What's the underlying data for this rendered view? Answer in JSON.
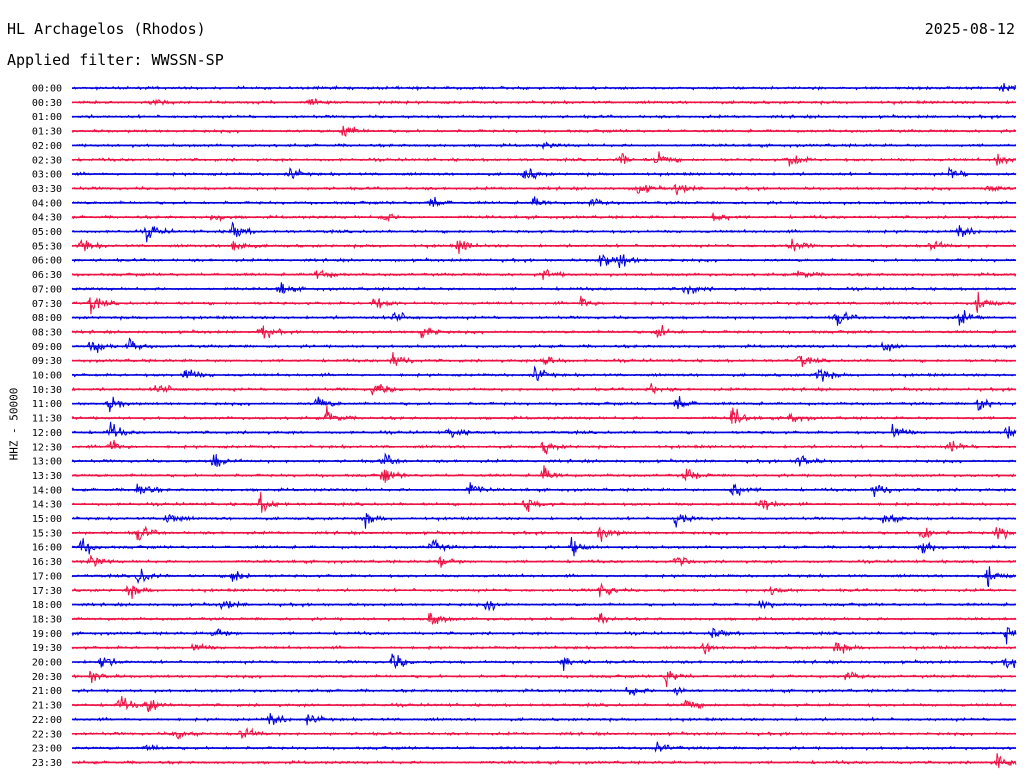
{
  "header": {
    "station": "HL Archagelos (Rhodos)",
    "date": "2025-08-12",
    "filter": "Applied filter: WWSSN-SP"
  },
  "chart_data": {
    "type": "line",
    "title": "HL Archagelos (Rhodos)",
    "ylabel": "HHZ - 50000",
    "colors": [
      "#0000dd",
      "#ee1144"
    ],
    "x_span": "30 minutes per trace",
    "traces": [
      {
        "label": "00:00",
        "color": "#0000dd",
        "events": [
          [
            0.985,
            1.0
          ]
        ]
      },
      {
        "label": "00:30",
        "color": "#ee1144",
        "events": [
          [
            0.086,
            0.45
          ],
          [
            0.25,
            0.6
          ]
        ]
      },
      {
        "label": "01:00",
        "color": "#0000dd",
        "events": []
      },
      {
        "label": "01:30",
        "color": "#ee1144",
        "events": [
          [
            0.287,
            0.9
          ]
        ]
      },
      {
        "label": "02:00",
        "color": "#0000dd",
        "events": [
          [
            0.5,
            0.3
          ]
        ]
      },
      {
        "label": "02:30",
        "color": "#ee1144",
        "events": [
          [
            0.58,
            0.7
          ],
          [
            0.62,
            0.9
          ],
          [
            0.76,
            0.9
          ],
          [
            0.98,
            0.7
          ]
        ]
      },
      {
        "label": "03:00",
        "color": "#0000dd",
        "events": [
          [
            0.23,
            0.7
          ],
          [
            0.48,
            0.8
          ],
          [
            0.93,
            0.8
          ]
        ]
      },
      {
        "label": "03:30",
        "color": "#ee1144",
        "events": [
          [
            0.6,
            0.7
          ],
          [
            0.64,
            0.8
          ],
          [
            0.97,
            0.6
          ]
        ]
      },
      {
        "label": "04:00",
        "color": "#0000dd",
        "events": [
          [
            0.38,
            0.8
          ],
          [
            0.49,
            0.6
          ],
          [
            0.55,
            0.5
          ]
        ]
      },
      {
        "label": "04:30",
        "color": "#ee1144",
        "events": [
          [
            0.15,
            0.6
          ],
          [
            0.33,
            0.6
          ],
          [
            0.68,
            0.7
          ]
        ]
      },
      {
        "label": "05:00",
        "color": "#0000dd",
        "events": [
          [
            0.08,
            1.0
          ],
          [
            0.17,
            1.0
          ],
          [
            0.94,
            1.0
          ]
        ]
      },
      {
        "label": "05:30",
        "color": "#ee1144",
        "events": [
          [
            0.01,
            0.8
          ],
          [
            0.17,
            1.0
          ],
          [
            0.41,
            0.8
          ],
          [
            0.76,
            0.9
          ],
          [
            0.91,
            0.8
          ]
        ]
      },
      {
        "label": "06:00",
        "color": "#0000dd",
        "events": [
          [
            0.56,
            1.0
          ],
          [
            0.58,
            0.9
          ]
        ]
      },
      {
        "label": "06:30",
        "color": "#ee1144",
        "events": [
          [
            0.26,
            0.8
          ],
          [
            0.5,
            0.7
          ],
          [
            0.77,
            0.6
          ]
        ]
      },
      {
        "label": "07:00",
        "color": "#0000dd",
        "events": [
          [
            0.22,
            0.8
          ],
          [
            0.65,
            0.9
          ]
        ]
      },
      {
        "label": "07:30",
        "color": "#ee1144",
        "events": [
          [
            0.02,
            1.0
          ],
          [
            0.32,
            0.8
          ],
          [
            0.54,
            0.8
          ],
          [
            0.96,
            1.0
          ]
        ]
      },
      {
        "label": "08:00",
        "color": "#0000dd",
        "events": [
          [
            0.34,
            0.9
          ],
          [
            0.81,
            1.0
          ],
          [
            0.94,
            1.0
          ]
        ]
      },
      {
        "label": "08:30",
        "color": "#ee1144",
        "events": [
          [
            0.2,
            1.0
          ],
          [
            0.37,
            0.9
          ],
          [
            0.62,
            1.0
          ]
        ]
      },
      {
        "label": "09:00",
        "color": "#0000dd",
        "events": [
          [
            0.02,
            1.0
          ],
          [
            0.06,
            0.8
          ],
          [
            0.86,
            0.9
          ]
        ]
      },
      {
        "label": "09:30",
        "color": "#ee1144",
        "events": [
          [
            0.34,
            1.0
          ],
          [
            0.5,
            0.9
          ],
          [
            0.77,
            0.8
          ]
        ]
      },
      {
        "label": "10:00",
        "color": "#0000dd",
        "events": [
          [
            0.12,
            1.0
          ],
          [
            0.49,
            0.9
          ],
          [
            0.79,
            1.0
          ]
        ]
      },
      {
        "label": "10:30",
        "color": "#ee1144",
        "events": [
          [
            0.09,
            0.9
          ],
          [
            0.32,
            1.0
          ],
          [
            0.61,
            0.7
          ]
        ]
      },
      {
        "label": "11:00",
        "color": "#0000dd",
        "events": [
          [
            0.04,
            0.9
          ],
          [
            0.26,
            0.8
          ],
          [
            0.64,
            1.0
          ],
          [
            0.96,
            1.0
          ]
        ]
      },
      {
        "label": "11:30",
        "color": "#ee1144",
        "events": [
          [
            0.27,
            0.9
          ],
          [
            0.7,
            1.0
          ],
          [
            0.76,
            0.7
          ]
        ]
      },
      {
        "label": "12:00",
        "color": "#0000dd",
        "events": [
          [
            0.04,
            1.0
          ],
          [
            0.4,
            0.8
          ],
          [
            0.87,
            1.0
          ],
          [
            0.99,
            0.9
          ]
        ]
      },
      {
        "label": "12:30",
        "color": "#ee1144",
        "events": [
          [
            0.04,
            0.9
          ],
          [
            0.5,
            0.7
          ],
          [
            0.93,
            0.8
          ]
        ]
      },
      {
        "label": "13:00",
        "color": "#0000dd",
        "events": [
          [
            0.15,
            1.0
          ],
          [
            0.33,
            0.8
          ],
          [
            0.77,
            0.9
          ]
        ]
      },
      {
        "label": "13:30",
        "color": "#ee1144",
        "events": [
          [
            0.33,
            1.0
          ],
          [
            0.5,
            0.9
          ],
          [
            0.65,
            0.8
          ]
        ]
      },
      {
        "label": "14:00",
        "color": "#0000dd",
        "events": [
          [
            0.07,
            1.0
          ],
          [
            0.42,
            0.9
          ],
          [
            0.7,
            1.0
          ],
          [
            0.85,
            1.0
          ]
        ]
      },
      {
        "label": "14:30",
        "color": "#ee1144",
        "events": [
          [
            0.2,
            1.0
          ],
          [
            0.48,
            0.9
          ],
          [
            0.73,
            0.9
          ]
        ]
      },
      {
        "label": "15:00",
        "color": "#0000dd",
        "events": [
          [
            0.1,
            0.9
          ],
          [
            0.31,
            0.8
          ],
          [
            0.64,
            1.0
          ],
          [
            0.86,
            1.0
          ]
        ]
      },
      {
        "label": "15:30",
        "color": "#ee1144",
        "events": [
          [
            0.07,
            1.0
          ],
          [
            0.56,
            1.0
          ],
          [
            0.9,
            1.0
          ],
          [
            0.98,
            1.0
          ]
        ]
      },
      {
        "label": "16:00",
        "color": "#0000dd",
        "events": [
          [
            0.01,
            1.0
          ],
          [
            0.38,
            0.9
          ],
          [
            0.53,
            1.0
          ],
          [
            0.9,
            1.0
          ]
        ]
      },
      {
        "label": "16:30",
        "color": "#ee1144",
        "events": [
          [
            0.02,
            0.7
          ],
          [
            0.39,
            0.8
          ],
          [
            0.64,
            0.7
          ]
        ]
      },
      {
        "label": "17:00",
        "color": "#0000dd",
        "events": [
          [
            0.07,
            1.0
          ],
          [
            0.17,
            0.9
          ],
          [
            0.97,
            1.0
          ]
        ]
      },
      {
        "label": "17:30",
        "color": "#ee1144",
        "events": [
          [
            0.06,
            0.9
          ],
          [
            0.56,
            1.0
          ],
          [
            0.74,
            0.7
          ]
        ]
      },
      {
        "label": "18:00",
        "color": "#0000dd",
        "events": [
          [
            0.16,
            0.7
          ],
          [
            0.44,
            0.6
          ],
          [
            0.73,
            0.5
          ]
        ]
      },
      {
        "label": "18:30",
        "color": "#ee1144",
        "events": [
          [
            0.38,
            1.0
          ],
          [
            0.56,
            0.6
          ]
        ]
      },
      {
        "label": "19:00",
        "color": "#0000dd",
        "events": [
          [
            0.15,
            0.8
          ],
          [
            0.68,
            0.7
          ],
          [
            0.99,
            0.9
          ]
        ]
      },
      {
        "label": "19:30",
        "color": "#ee1144",
        "events": [
          [
            0.13,
            0.6
          ],
          [
            0.67,
            0.7
          ],
          [
            0.81,
            0.8
          ]
        ]
      },
      {
        "label": "20:00",
        "color": "#0000dd",
        "events": [
          [
            0.03,
            1.0
          ],
          [
            0.34,
            1.0
          ],
          [
            0.52,
            0.8
          ],
          [
            0.99,
            0.8
          ]
        ]
      },
      {
        "label": "20:30",
        "color": "#ee1144",
        "events": [
          [
            0.02,
            0.8
          ],
          [
            0.63,
            1.0
          ],
          [
            0.82,
            0.6
          ]
        ]
      },
      {
        "label": "21:00",
        "color": "#0000dd",
        "events": [
          [
            0.59,
            0.8
          ],
          [
            0.64,
            0.6
          ]
        ]
      },
      {
        "label": "21:30",
        "color": "#ee1144",
        "events": [
          [
            0.05,
            1.0
          ],
          [
            0.08,
            1.0
          ],
          [
            0.65,
            0.8
          ]
        ]
      },
      {
        "label": "22:00",
        "color": "#0000dd",
        "events": [
          [
            0.21,
            1.0
          ],
          [
            0.25,
            0.6
          ]
        ]
      },
      {
        "label": "22:30",
        "color": "#ee1144",
        "events": [
          [
            0.11,
            0.8
          ],
          [
            0.18,
            1.0
          ]
        ]
      },
      {
        "label": "23:00",
        "color": "#0000dd",
        "events": [
          [
            0.08,
            0.5
          ],
          [
            0.62,
            0.7
          ]
        ]
      },
      {
        "label": "23:30",
        "color": "#ee1144",
        "events": [
          [
            0.98,
            0.9
          ]
        ]
      }
    ]
  }
}
